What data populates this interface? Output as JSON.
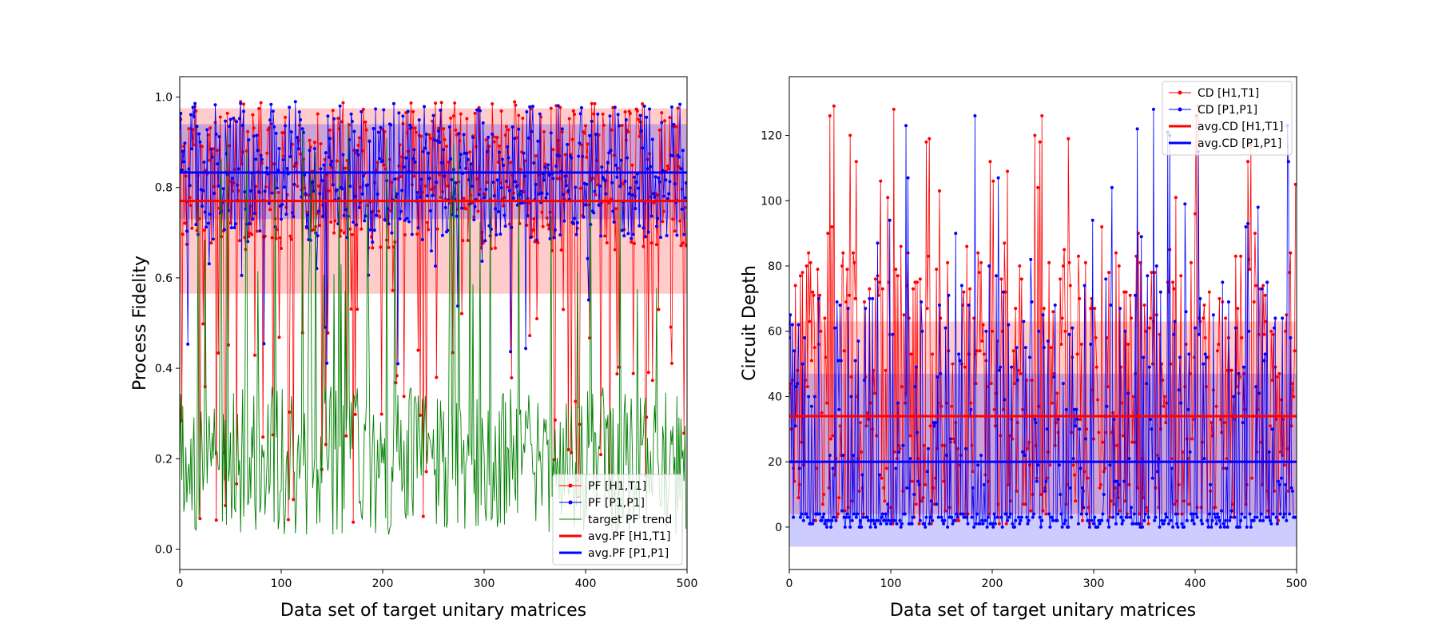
{
  "chart_data": [
    {
      "type": "line",
      "title": "",
      "xlabel": "Data set of target unitary matrices",
      "ylabel": "Process Fidelity",
      "xlim": [
        0,
        500
      ],
      "ylim": [
        -0.045,
        1.045
      ],
      "xticks": [
        "0",
        "100",
        "200",
        "300",
        "400",
        "500"
      ],
      "yticks": [
        "0.0",
        "0.2",
        "0.4",
        "0.6",
        "0.8",
        "1.0"
      ],
      "grid": false,
      "legend_position": "lower-right",
      "n_points": 500,
      "series": [
        {
          "name": "PF [H1,T1]",
          "color": "#ff0000",
          "marker": "dot",
          "mean": 0.77,
          "range": [
            0.01,
            0.99
          ]
        },
        {
          "name": "PF [P1,P1]",
          "color": "#0000ff",
          "marker": "dot",
          "mean": 0.833,
          "range": [
            0.38,
            1.0
          ]
        },
        {
          "name": "target PF trend",
          "color": "#008000",
          "marker": "none",
          "range": [
            0.02,
            0.98
          ]
        },
        {
          "name": "avg.PF [H1,T1]",
          "color": "#ff0000",
          "type": "hline",
          "value": 0.77
        },
        {
          "name": "avg.PF [P1,P1]",
          "color": "#0000ff",
          "type": "hline",
          "value": 0.833
        }
      ],
      "bands": [
        {
          "color": "#ff0000",
          "range": [
            0.565,
            0.975
          ]
        },
        {
          "color": "#0000ff",
          "range": [
            0.73,
            0.94
          ]
        }
      ]
    },
    {
      "type": "line",
      "title": "",
      "xlabel": "Data set of target unitary matrices",
      "ylabel": "Circuit Depth",
      "xlim": [
        0,
        500
      ],
      "ylim": [
        -13,
        138
      ],
      "xticks": [
        "0",
        "100",
        "200",
        "300",
        "400",
        "500"
      ],
      "yticks": [
        "0",
        "20",
        "40",
        "60",
        "80",
        "100",
        "120"
      ],
      "grid": false,
      "legend_position": "upper-right",
      "n_points": 500,
      "series": [
        {
          "name": "CD [H1,T1]",
          "color": "#ff0000",
          "marker": "dot",
          "mean": 34,
          "range": [
            0,
            129
          ]
        },
        {
          "name": "CD [P1,P1]",
          "color": "#0000ff",
          "marker": "dot",
          "mean": 20,
          "range": [
            0,
            131
          ]
        },
        {
          "name": "avg.CD [H1,T1]",
          "color": "#ff0000",
          "type": "hline",
          "value": 34
        },
        {
          "name": "avg.CD [P1,P1]",
          "color": "#0000ff",
          "type": "hline",
          "value": 20
        }
      ],
      "bands": [
        {
          "color": "#ff0000",
          "range": [
            4,
            63
          ]
        },
        {
          "color": "#0000ff",
          "range": [
            -6,
            47
          ]
        }
      ]
    }
  ]
}
